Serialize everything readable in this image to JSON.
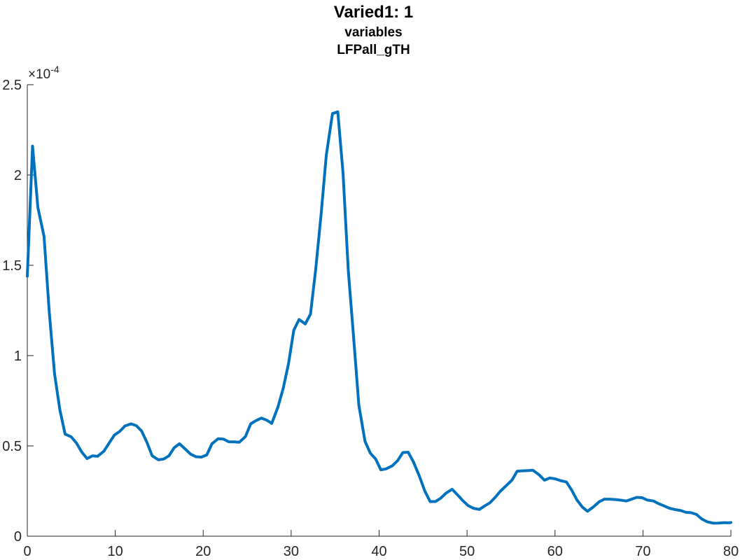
{
  "chart_data": {
    "type": "line",
    "title": "Varied1: 1",
    "subtitle": [
      "variables",
      "LFPall_gTH"
    ],
    "xlabel": "",
    "ylabel": "",
    "xlim": [
      0,
      80
    ],
    "ylim": [
      0,
      2.5
    ],
    "y_exponent_label": "×10",
    "y_exponent_power": "-4",
    "xticks": [
      0,
      10,
      20,
      30,
      40,
      50,
      60,
      70,
      80
    ],
    "xtick_labels": [
      "0",
      "10",
      "20",
      "30",
      "40",
      "50",
      "60",
      "70",
      "80"
    ],
    "yticks": [
      0,
      0.5,
      1,
      1.5,
      2,
      2.5
    ],
    "ytick_labels": [
      "0",
      "0.5",
      "1",
      "1.5",
      "2",
      "2.5"
    ],
    "grid": false,
    "line_color": "#0072bd",
    "series": [
      {
        "x": [
          0,
          0.6,
          1.2,
          1.9,
          2.5,
          3.1,
          3.7,
          4.3,
          5.0,
          5.6,
          6.2,
          6.8,
          7.4,
          8.0,
          8.7,
          9.3,
          9.9,
          10.5,
          11.1,
          11.8,
          12.4,
          13.0,
          13.6,
          14.2,
          14.9,
          15.5,
          16.1,
          16.7,
          17.3,
          17.9,
          18.6,
          19.2,
          19.8,
          20.4,
          21.0,
          21.7,
          22.3,
          22.9,
          23.5,
          24.1,
          24.8,
          25.4,
          26.0,
          26.6,
          27.2,
          27.8,
          28.5,
          29.1,
          29.7,
          30.3,
          30.9,
          31.6,
          32.2,
          32.8,
          33.4,
          34.0,
          34.7,
          35.3,
          35.9,
          36.5,
          37.1,
          37.7,
          38.4,
          39.0,
          39.6,
          40.2,
          40.8,
          41.5,
          42.1,
          42.7,
          43.3,
          43.9,
          44.6,
          45.2,
          45.8,
          46.4,
          47.0,
          47.6,
          48.3,
          48.9,
          49.5,
          50.1,
          50.7,
          51.4,
          52.0,
          52.6,
          53.2,
          53.8,
          54.5,
          55.1,
          55.7,
          56.3,
          56.9,
          57.5,
          58.2,
          58.8,
          59.4,
          60.0,
          60.6,
          61.3,
          61.9,
          62.5,
          63.1,
          63.7,
          64.4,
          65.0,
          65.6,
          66.2,
          66.8,
          67.4,
          68.1,
          68.7,
          69.3,
          69.9,
          70.5,
          71.2,
          71.8,
          72.4,
          73.0,
          73.6,
          74.3,
          74.9,
          75.5,
          76.1,
          76.7,
          77.3,
          78.0,
          78.6,
          79.2,
          79.8,
          80.0
        ],
        "values": [
          1.44,
          2.16,
          1.82,
          1.66,
          1.24,
          0.9,
          0.7,
          0.565,
          0.55,
          0.515,
          0.465,
          0.43,
          0.445,
          0.443,
          0.47,
          0.515,
          0.56,
          0.58,
          0.61,
          0.622,
          0.612,
          0.582,
          0.52,
          0.445,
          0.423,
          0.427,
          0.445,
          0.49,
          0.512,
          0.485,
          0.453,
          0.44,
          0.438,
          0.45,
          0.512,
          0.54,
          0.538,
          0.523,
          0.522,
          0.52,
          0.552,
          0.622,
          0.64,
          0.654,
          0.643,
          0.625,
          0.715,
          0.82,
          0.955,
          1.14,
          1.2,
          1.175,
          1.23,
          1.48,
          1.78,
          2.11,
          2.34,
          2.35,
          2.01,
          1.47,
          1.1,
          0.725,
          0.525,
          0.46,
          0.428,
          0.368,
          0.373,
          0.39,
          0.418,
          0.463,
          0.465,
          0.412,
          0.33,
          0.25,
          0.192,
          0.192,
          0.21,
          0.238,
          0.26,
          0.23,
          0.198,
          0.17,
          0.155,
          0.148,
          0.168,
          0.185,
          0.215,
          0.25,
          0.282,
          0.31,
          0.36,
          0.362,
          0.363,
          0.365,
          0.34,
          0.31,
          0.322,
          0.318,
          0.308,
          0.3,
          0.255,
          0.2,
          0.162,
          0.138,
          0.163,
          0.19,
          0.205,
          0.205,
          0.203,
          0.2,
          0.195,
          0.205,
          0.215,
          0.213,
          0.2,
          0.195,
          0.18,
          0.168,
          0.155,
          0.148,
          0.142,
          0.132,
          0.13,
          0.12,
          0.095,
          0.08,
          0.072,
          0.073,
          0.075,
          0.074,
          0.076
        ]
      }
    ]
  }
}
